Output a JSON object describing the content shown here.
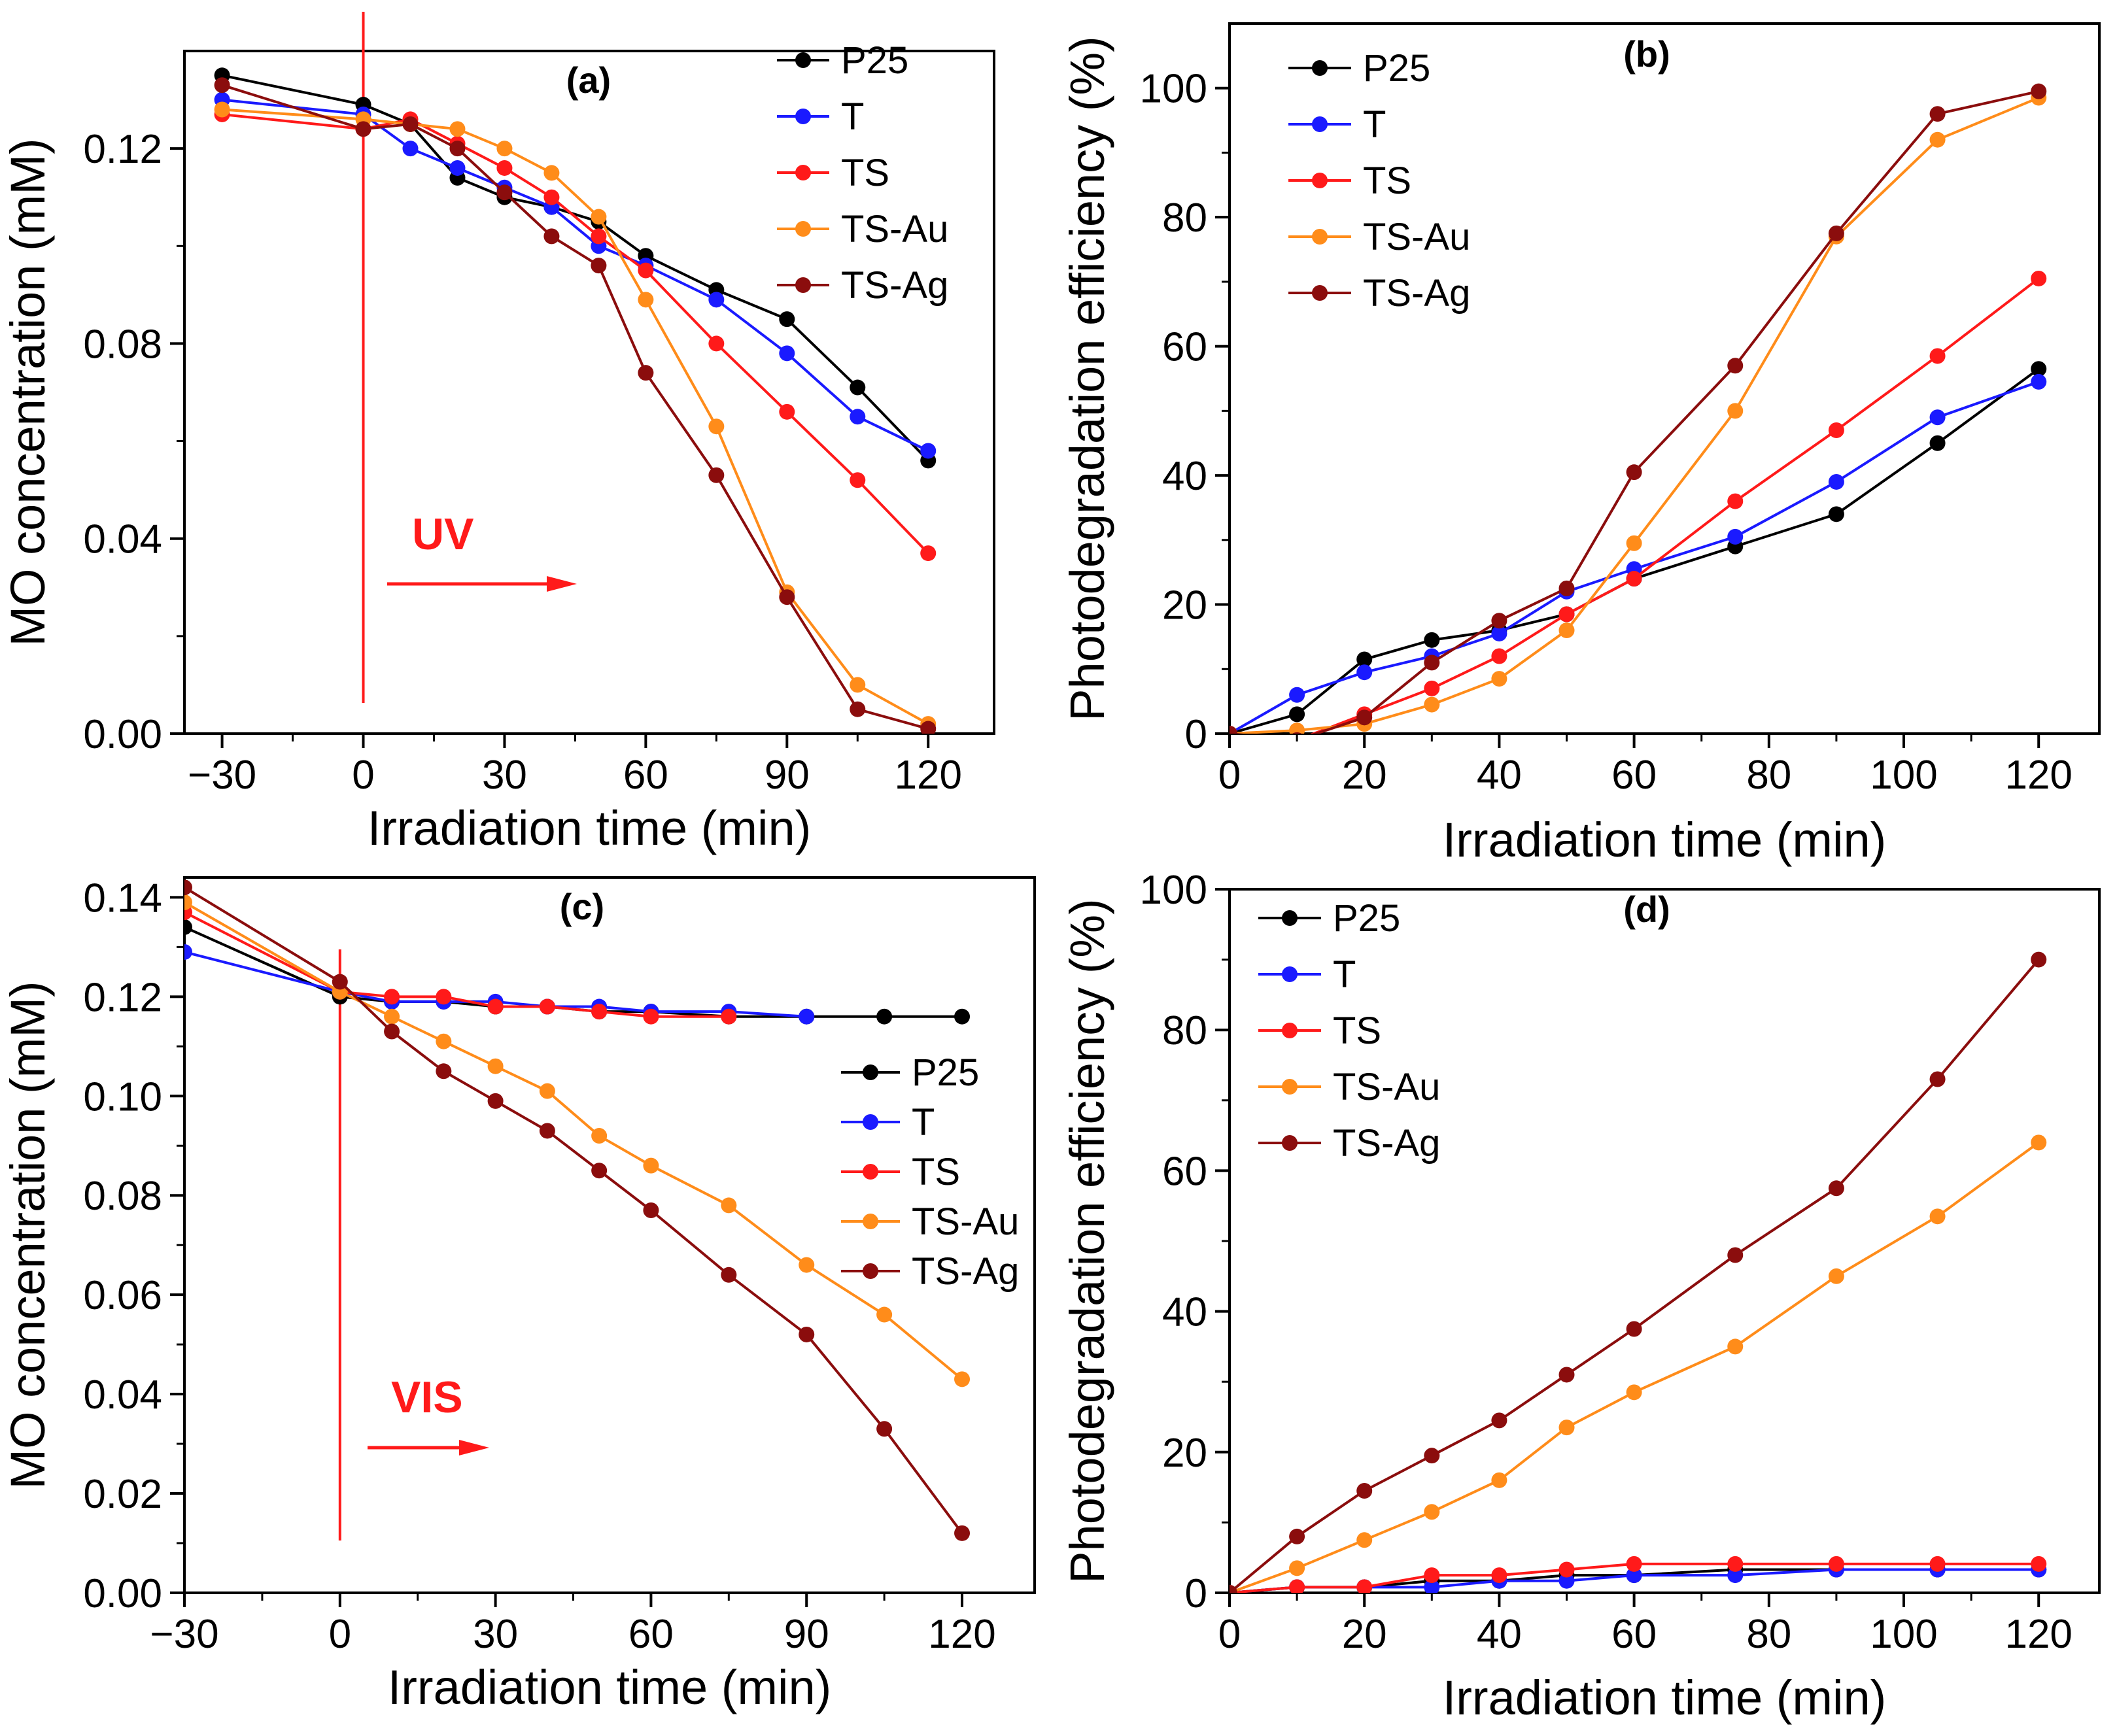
{
  "colors": {
    "P25": "#000000",
    "T": "#1a1aff",
    "TS": "#ff1a1a",
    "TS-Au": "#ff8c1a",
    "TS-Ag": "#8b0d0d",
    "marker": "#ff1a1a"
  },
  "chart_data": [
    {
      "id": "a",
      "type": "line",
      "panel_label": "(a)",
      "xlabel": "Irradiation time (min)",
      "ylabel": "MO concentration (mM)",
      "xlim": [
        -38,
        134
      ],
      "ylim": [
        0,
        0.14
      ],
      "xticks": [
        -30,
        0,
        30,
        60,
        90,
        120
      ],
      "xtick_labels": [
        "−30",
        "0",
        "30",
        "60",
        "90",
        "120"
      ],
      "yticks": [
        0,
        0.04,
        0.08,
        0.12
      ],
      "ytick_labels": [
        "0.00",
        "0.04",
        "0.08",
        "0.12"
      ],
      "legend_position": "top-right",
      "vline": {
        "x": 0,
        "label": "UV"
      },
      "series": [
        {
          "name": "P25",
          "color": "#000000",
          "x": [
            -30,
            0,
            10,
            20,
            30,
            40,
            50,
            60,
            75,
            90,
            105,
            120
          ],
          "y": [
            0.135,
            0.129,
            0.125,
            0.114,
            0.11,
            0.108,
            0.105,
            0.098,
            0.091,
            0.085,
            0.071,
            0.056
          ]
        },
        {
          "name": "T",
          "color": "#1a1aff",
          "x": [
            -30,
            0,
            10,
            20,
            30,
            40,
            50,
            60,
            75,
            90,
            105,
            120
          ],
          "y": [
            0.13,
            0.127,
            0.12,
            0.116,
            0.112,
            0.108,
            0.1,
            0.096,
            0.089,
            0.078,
            0.065,
            0.058
          ]
        },
        {
          "name": "TS",
          "color": "#ff1a1a",
          "x": [
            -30,
            0,
            10,
            20,
            30,
            40,
            50,
            60,
            75,
            90,
            105,
            120
          ],
          "y": [
            0.127,
            0.124,
            0.126,
            0.121,
            0.116,
            0.11,
            0.102,
            0.095,
            0.08,
            0.066,
            0.052,
            0.037
          ]
        },
        {
          "name": "TS-Au",
          "color": "#ff8c1a",
          "x": [
            -30,
            0,
            10,
            20,
            30,
            40,
            50,
            60,
            75,
            90,
            105,
            120
          ],
          "y": [
            0.128,
            0.126,
            0.125,
            0.124,
            0.12,
            0.115,
            0.106,
            0.089,
            0.063,
            0.029,
            0.01,
            0.002
          ]
        },
        {
          "name": "TS-Ag",
          "color": "#8b0d0d",
          "x": [
            -30,
            0,
            10,
            20,
            30,
            40,
            50,
            60,
            75,
            90,
            105,
            120
          ],
          "y": [
            0.133,
            0.124,
            0.125,
            0.12,
            0.111,
            0.102,
            0.096,
            0.074,
            0.053,
            0.028,
            0.005,
            0.001
          ]
        }
      ]
    },
    {
      "id": "b",
      "type": "line",
      "panel_label": "(b)",
      "xlabel": "Irradiation time (min)",
      "ylabel": "Photodegradation efficiency (%)",
      "xlim": [
        0,
        129
      ],
      "ylim": [
        0,
        110
      ],
      "xticks": [
        0,
        20,
        40,
        60,
        80,
        100,
        120
      ],
      "xtick_labels": [
        "0",
        "20",
        "40",
        "60",
        "80",
        "100",
        "120"
      ],
      "yticks": [
        0,
        20,
        40,
        60,
        80,
        100
      ],
      "ytick_labels": [
        "0",
        "20",
        "40",
        "60",
        "80",
        "100"
      ],
      "legend_position": "top-left",
      "series": [
        {
          "name": "P25",
          "color": "#000000",
          "x": [
            0,
            10,
            20,
            30,
            40,
            50,
            60,
            75,
            90,
            105,
            120
          ],
          "y": [
            0,
            3,
            11.5,
            14.5,
            16,
            18.5,
            24,
            29,
            34,
            45,
            56.5
          ]
        },
        {
          "name": "T",
          "color": "#1a1aff",
          "x": [
            0,
            10,
            20,
            30,
            40,
            50,
            60,
            75,
            90,
            105,
            120
          ],
          "y": [
            0,
            6,
            9.5,
            12,
            15.5,
            22,
            25.5,
            30.5,
            39,
            49,
            54.5
          ]
        },
        {
          "name": "TS",
          "color": "#ff1a1a",
          "x": [
            0,
            10,
            20,
            30,
            40,
            50,
            60,
            75,
            90,
            105,
            120
          ],
          "y": [
            0,
            -1,
            3,
            7,
            12,
            18.5,
            24,
            36,
            47,
            58.5,
            70.5
          ]
        },
        {
          "name": "TS-Au",
          "color": "#ff8c1a",
          "x": [
            0,
            10,
            20,
            30,
            40,
            50,
            60,
            75,
            90,
            105,
            120
          ],
          "y": [
            0,
            0.5,
            1.5,
            4.5,
            8.5,
            16,
            29.5,
            50,
            77,
            92,
            98.5
          ]
        },
        {
          "name": "TS-Ag",
          "color": "#8b0d0d",
          "x": [
            0,
            10,
            20,
            30,
            40,
            50,
            60,
            75,
            90,
            105,
            120
          ],
          "y": [
            0,
            -1,
            2.5,
            11,
            17.5,
            22.5,
            40.5,
            57,
            77.5,
            96,
            99.5
          ]
        }
      ]
    },
    {
      "id": "c",
      "type": "line",
      "panel_label": "(c)",
      "xlabel": "Irradiation time (min)",
      "ylabel": "MO concentration (mM)",
      "xlim": [
        -30,
        134
      ],
      "ylim": [
        0,
        0.144
      ],
      "xticks": [
        -30,
        0,
        30,
        60,
        90,
        120
      ],
      "xtick_labels": [
        "−30",
        "0",
        "30",
        "60",
        "90",
        "120"
      ],
      "yticks": [
        0,
        0.02,
        0.04,
        0.06,
        0.08,
        0.1,
        0.12,
        0.14
      ],
      "ytick_labels": [
        "0.00",
        "0.02",
        "0.04",
        "0.06",
        "0.08",
        "0.10",
        "0.12",
        "0.14"
      ],
      "legend_position": "right",
      "vline": {
        "x": 0,
        "label": "VIS"
      },
      "series": [
        {
          "name": "P25",
          "color": "#000000",
          "x": [
            -30,
            0,
            10,
            20,
            30,
            40,
            50,
            60,
            75,
            90,
            105,
            120
          ],
          "y": [
            0.134,
            0.12,
            0.119,
            0.119,
            0.118,
            0.118,
            0.117,
            0.117,
            0.116,
            0.116,
            0.116,
            0.116
          ]
        },
        {
          "name": "T",
          "color": "#1a1aff",
          "x": [
            -30,
            0,
            10,
            20,
            30,
            40,
            50,
            60,
            75,
            90
          ],
          "y": [
            0.129,
            0.121,
            0.119,
            0.119,
            0.119,
            0.118,
            0.118,
            0.117,
            0.117,
            0.116
          ]
        },
        {
          "name": "TS",
          "color": "#ff1a1a",
          "x": [
            -30,
            0,
            10,
            20,
            30,
            40,
            50,
            60,
            75
          ],
          "y": [
            0.137,
            0.121,
            0.12,
            0.12,
            0.118,
            0.118,
            0.117,
            0.116,
            0.116
          ]
        },
        {
          "name": "TS-Au",
          "color": "#ff8c1a",
          "x": [
            -30,
            0,
            10,
            20,
            30,
            40,
            50,
            60,
            75,
            90,
            105,
            120
          ],
          "y": [
            0.139,
            0.121,
            0.116,
            0.111,
            0.106,
            0.101,
            0.092,
            0.086,
            0.078,
            0.066,
            0.056,
            0.043
          ]
        },
        {
          "name": "TS-Ag",
          "color": "#8b0d0d",
          "x": [
            -30,
            0,
            10,
            20,
            30,
            40,
            50,
            60,
            75,
            90,
            105,
            120
          ],
          "y": [
            0.142,
            0.123,
            0.113,
            0.105,
            0.099,
            0.093,
            0.085,
            0.077,
            0.064,
            0.052,
            0.033,
            0.012
          ]
        }
      ]
    },
    {
      "id": "d",
      "type": "line",
      "panel_label": "(d)",
      "xlabel": "Irradiation time (min)",
      "ylabel": "Photodegradation efficiency (%)",
      "xlim": [
        0,
        129
      ],
      "ylim": [
        0,
        100
      ],
      "xticks": [
        0,
        20,
        40,
        60,
        80,
        100,
        120
      ],
      "xtick_labels": [
        "0",
        "20",
        "40",
        "60",
        "80",
        "100",
        "120"
      ],
      "yticks": [
        0,
        20,
        40,
        60,
        80,
        100
      ],
      "ytick_labels": [
        "0",
        "20",
        "40",
        "60",
        "80",
        "100"
      ],
      "legend_position": "top-left",
      "series": [
        {
          "name": "P25",
          "color": "#000000",
          "x": [
            0,
            10,
            20,
            30,
            40,
            50,
            60,
            75,
            90,
            105,
            120
          ],
          "y": [
            0,
            0.8,
            0.8,
            1.7,
            1.7,
            2.5,
            2.5,
            3.3,
            3.3,
            3.3,
            3.3
          ]
        },
        {
          "name": "T",
          "color": "#1a1aff",
          "x": [
            0,
            10,
            20,
            30,
            40,
            50,
            60,
            75,
            90,
            105,
            120
          ],
          "y": [
            0,
            0.8,
            0.8,
            0.8,
            1.7,
            1.7,
            2.5,
            2.5,
            3.3,
            3.3,
            3.3
          ]
        },
        {
          "name": "TS",
          "color": "#ff1a1a",
          "x": [
            0,
            10,
            20,
            30,
            40,
            50,
            60,
            75,
            90,
            105,
            120
          ],
          "y": [
            0,
            0.8,
            0.8,
            2.5,
            2.5,
            3.3,
            4.1,
            4.1,
            4.1,
            4.1,
            4.1
          ]
        },
        {
          "name": "TS-Au",
          "color": "#ff8c1a",
          "x": [
            0,
            10,
            20,
            30,
            40,
            50,
            60,
            75,
            90,
            105,
            120
          ],
          "y": [
            0,
            3.5,
            7.5,
            11.5,
            16,
            23.5,
            28.5,
            35,
            45,
            53.5,
            64
          ]
        },
        {
          "name": "TS-Ag",
          "color": "#8b0d0d",
          "x": [
            0,
            10,
            20,
            30,
            40,
            50,
            60,
            75,
            90,
            105,
            120
          ],
          "y": [
            0,
            8,
            14.5,
            19.5,
            24.5,
            31,
            37.5,
            48,
            57.5,
            73,
            90
          ]
        }
      ]
    }
  ]
}
